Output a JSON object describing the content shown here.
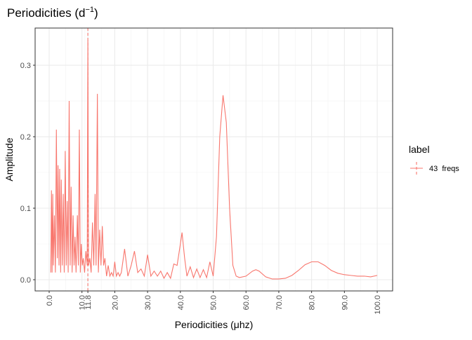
{
  "chart_data": {
    "type": "line",
    "title": {
      "text": "Periodicities (d",
      "superscript": "−1",
      "suffix": ")"
    },
    "x_label": "Periodicities (μhz)",
    "y_label": "Amplitude",
    "x": [
      0.5,
      0.7,
      0.9,
      1.1,
      1.3,
      1.6,
      1.9,
      2.2,
      2.5,
      2.7,
      3.0,
      3.2,
      3.5,
      3.7,
      4.0,
      4.3,
      4.6,
      4.9,
      5.2,
      5.5,
      5.8,
      6.1,
      6.4,
      6.7,
      7.0,
      7.3,
      7.6,
      7.9,
      8.2,
      8.6,
      8.9,
      9.2,
      9.5,
      9.8,
      10.1,
      10.4,
      10.8,
      11.2,
      11.6,
      11.8,
      12.0,
      12.4,
      12.8,
      13.2,
      13.6,
      14.0,
      14.3,
      14.7,
      15.0,
      15.4,
      15.8,
      16.2,
      16.6,
      17.0,
      17.5,
      18,
      18.5,
      19,
      19.5,
      20,
      20.5,
      21,
      21.5,
      22,
      23,
      24,
      25,
      26,
      27,
      28,
      29,
      30,
      31,
      32,
      33,
      34,
      35,
      36,
      37,
      38,
      39,
      40,
      40.5,
      41.3,
      42,
      43,
      44,
      45,
      46,
      47,
      48,
      49,
      50,
      51,
      52,
      53,
      54,
      55,
      56,
      57,
      58,
      60,
      62,
      63,
      64,
      66,
      68,
      70,
      72,
      74,
      76,
      78,
      80,
      82,
      84,
      86,
      88,
      90,
      92,
      94,
      96,
      98,
      100
    ],
    "series": [
      {
        "name": "43  freqs",
        "color": "#f8766d",
        "values": [
          0.01,
          0.125,
          0.01,
          0.12,
          0.02,
          0.09,
          0.01,
          0.21,
          0.03,
          0.16,
          0.02,
          0.155,
          0.01,
          0.14,
          0.02,
          0.12,
          0.01,
          0.18,
          0.02,
          0.11,
          0.01,
          0.25,
          0.02,
          0.13,
          0.01,
          0.09,
          0.02,
          0.06,
          0.01,
          0.09,
          0.02,
          0.21,
          0.01,
          0.05,
          0.02,
          0.03,
          0.01,
          0.04,
          0.02,
          0.335,
          0.02,
          0.03,
          0.01,
          0.08,
          0.02,
          0.12,
          0.02,
          0.26,
          0.01,
          0.07,
          0.02,
          0.075,
          0.02,
          0.03,
          0.005,
          0.02,
          0.005,
          0.01,
          0.005,
          0.025,
          0.005,
          0.01,
          0.005,
          0.01,
          0.043,
          0.005,
          0.02,
          0.04,
          0.01,
          0.015,
          0.005,
          0.035,
          0.005,
          0.012,
          0.005,
          0.012,
          0.002,
          0.01,
          0.002,
          0.022,
          0.02,
          0.05,
          0.066,
          0.03,
          0.005,
          0.018,
          0.003,
          0.015,
          0.003,
          0.014,
          0.003,
          0.025,
          0.005,
          0.06,
          0.2,
          0.258,
          0.22,
          0.1,
          0.02,
          0.005,
          0.003,
          0.005,
          0.012,
          0.014,
          0.012,
          0.004,
          0.001,
          0.001,
          0.002,
          0.006,
          0.013,
          0.021,
          0.025,
          0.025,
          0.02,
          0.013,
          0.009,
          0.007,
          0.006,
          0.005,
          0.005,
          0.004,
          0.006
        ]
      }
    ],
    "vline": {
      "x": 11.8,
      "color": "#f8766d",
      "linetype": "dashed"
    },
    "legend": {
      "title": "label",
      "position": "right"
    },
    "xlim": [
      -4.28,
      104.7
    ],
    "xticks": [
      {
        "value": 0,
        "label": "0.0"
      },
      {
        "value": 10,
        "label": "10.0"
      },
      {
        "value": 11.8,
        "label": "11.8"
      },
      {
        "value": 20,
        "label": "20.0"
      },
      {
        "value": 30,
        "label": "30.0"
      },
      {
        "value": 40,
        "label": "40.0"
      },
      {
        "value": 50,
        "label": "50.0"
      },
      {
        "value": 60,
        "label": "60.0"
      },
      {
        "value": 70,
        "label": "70.0"
      },
      {
        "value": 80,
        "label": "80.0"
      },
      {
        "value": 90,
        "label": "90.0"
      },
      {
        "value": 100,
        "label": "100.0"
      }
    ],
    "ylim": [
      -0.0157,
      0.352
    ],
    "yticks": [
      {
        "value": 0,
        "label": "0.0"
      },
      {
        "value": 0.1,
        "label": "0.1"
      },
      {
        "value": 0.2,
        "label": "0.2"
      },
      {
        "value": 0.3,
        "label": "0.3"
      }
    ],
    "grid": true
  }
}
